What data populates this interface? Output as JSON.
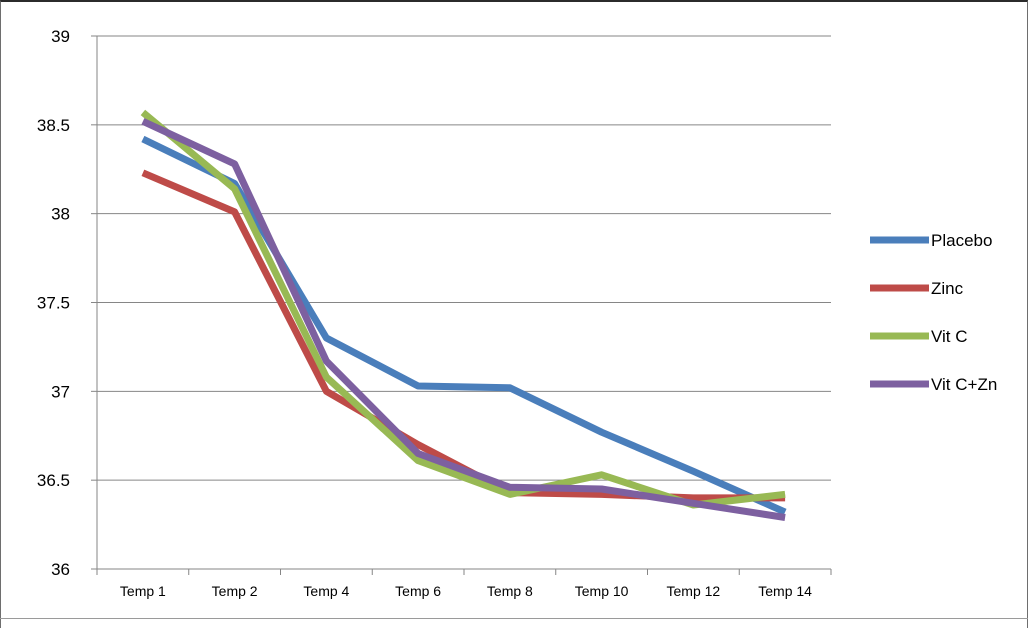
{
  "chart_data": {
    "type": "line",
    "categories": [
      "Temp 1",
      "Temp 2",
      "Temp 4",
      "Temp 6",
      "Temp 8",
      "Temp 10",
      "Temp 12",
      "Temp 14"
    ],
    "ylim": [
      36,
      39
    ],
    "yticks": [
      "36",
      "36.5",
      "37",
      "37.5",
      "38",
      "38.5",
      "39"
    ],
    "grid": true,
    "legend_position": "right",
    "series": [
      {
        "name": "Placebo",
        "color": "#4a7ebb",
        "values": [
          38.42,
          38.17,
          37.3,
          37.03,
          37.02,
          36.77,
          36.55,
          36.32
        ]
      },
      {
        "name": "Zinc",
        "color": "#be4b48",
        "values": [
          38.23,
          38.01,
          37.0,
          36.7,
          36.43,
          36.42,
          36.4,
          36.4
        ]
      },
      {
        "name": "Vit C",
        "color": "#98b954",
        "values": [
          38.57,
          38.14,
          37.08,
          36.61,
          36.42,
          36.53,
          36.36,
          36.42
        ]
      },
      {
        "name": "Vit C+Zn",
        "color": "#7d60a0",
        "values": [
          38.52,
          38.28,
          37.17,
          36.65,
          36.46,
          36.45,
          36.37,
          36.29
        ]
      }
    ]
  }
}
